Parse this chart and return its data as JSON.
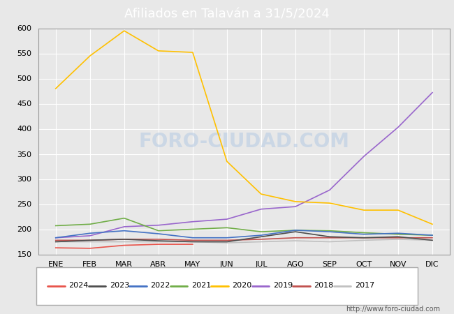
{
  "title": "Afiliados en Talaván a 31/5/2024",
  "months": [
    "ENE",
    "FEB",
    "MAR",
    "ABR",
    "MAY",
    "JUN",
    "JUL",
    "AGO",
    "SEP",
    "OCT",
    "NOV",
    "DIC"
  ],
  "ylim": [
    150,
    600
  ],
  "yticks": [
    150,
    200,
    250,
    300,
    350,
    400,
    450,
    500,
    550,
    600
  ],
  "series": {
    "2024": {
      "color": "#e8534a",
      "data": [
        163,
        162,
        168,
        170,
        170,
        null,
        null,
        null,
        null,
        null,
        null,
        null
      ]
    },
    "2023": {
      "color": "#4d4d4d",
      "data": [
        175,
        178,
        180,
        177,
        175,
        175,
        185,
        195,
        185,
        183,
        185,
        178
      ]
    },
    "2022": {
      "color": "#4472c4",
      "data": [
        183,
        192,
        197,
        191,
        183,
        183,
        188,
        198,
        195,
        190,
        192,
        188
      ]
    },
    "2021": {
      "color": "#70ad47",
      "data": [
        207,
        210,
        222,
        197,
        200,
        203,
        195,
        198,
        197,
        193,
        190,
        188
      ]
    },
    "2020": {
      "color": "#ffc000",
      "data": [
        480,
        545,
        595,
        555,
        552,
        335,
        270,
        255,
        252,
        238,
        238,
        210
      ]
    },
    "2019": {
      "color": "#9966cc",
      "data": [
        183,
        187,
        205,
        208,
        215,
        220,
        240,
        245,
        278,
        345,
        403,
        472
      ]
    },
    "2018": {
      "color": "#c0504d",
      "data": [
        178,
        178,
        180,
        180,
        178,
        178,
        180,
        183,
        183,
        183,
        183,
        183
      ]
    },
    "2017": {
      "color": "#c0c0c0",
      "data": [
        175,
        175,
        175,
        175,
        175,
        173,
        175,
        177,
        175,
        178,
        180,
        178
      ]
    }
  },
  "watermark": "FORO-CIUDAD.COM",
  "url": "http://www.foro-ciudad.com",
  "header_color": "#4d7ab5",
  "bg_color": "#e8e8e8",
  "plot_bg": "#e8e8e8",
  "grid_color": "#ffffff"
}
